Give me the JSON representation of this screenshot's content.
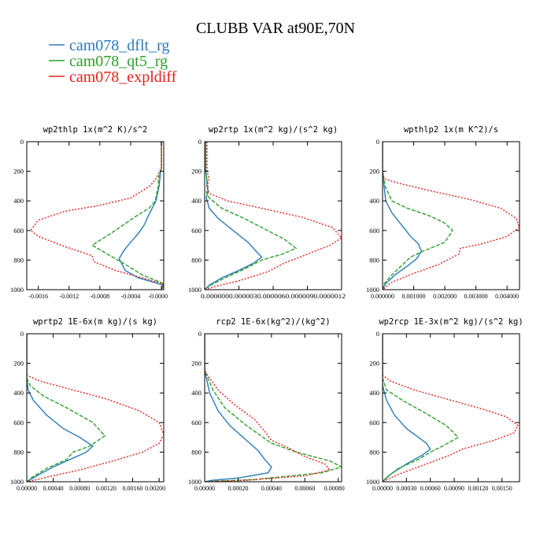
{
  "title": "CLUBB VAR at90E,70N",
  "legend": [
    {
      "name": "cam078_dflt_rg",
      "color": "#2b7bb9"
    },
    {
      "name": "cam078_qt5_rg",
      "color": "#2ca02c"
    },
    {
      "name": "cam078_expldiff",
      "color": "#e3211c"
    }
  ],
  "chart_data": [
    {
      "type": "line",
      "title": "wp2thlp   1x(m^2 K)/s^2",
      "xlim": [
        -0.00175,
        3e-05
      ],
      "ylim": [
        1000,
        0
      ],
      "xticks": [
        -0.0016,
        -0.0012,
        -0.0008,
        -0.0004,
        0.0
      ],
      "xtick_labels": [
        "-0.0016",
        "-0.0012",
        "-0.0008",
        "-0.0004",
        "-0.0000"
      ],
      "yticks": [
        0,
        200,
        400,
        600,
        800,
        1000
      ],
      "series": [
        {
          "name": "cam078_dflt_rg",
          "x": [
            0,
            0,
            -1e-05,
            -2e-05,
            -3e-05,
            -7e-05,
            -0.00012,
            -0.00017,
            -0.00022,
            -0.0003,
            -0.0004,
            -0.00048,
            -0.00055,
            -0.00047,
            -0.0003,
            -0.0001,
            2e-05,
            0
          ],
          "y": [
            0,
            180,
            200,
            250,
            300,
            400,
            450,
            500,
            560,
            620,
            680,
            730,
            790,
            870,
            920,
            950,
            970,
            1000
          ]
        },
        {
          "name": "cam078_qt5_rg",
          "x": [
            0,
            0,
            -2e-05,
            -4e-05,
            -4e-05,
            -8e-05,
            -0.00016,
            -0.00032,
            -0.0006,
            -0.0009,
            -0.0007,
            -0.0005,
            -0.00025,
            1e-05,
            2e-05,
            0
          ],
          "y": [
            0,
            180,
            210,
            250,
            300,
            400,
            450,
            500,
            600,
            700,
            760,
            820,
            900,
            955,
            980,
            1000
          ]
        },
        {
          "name": "cam078_expldiff",
          "x": [
            0,
            0,
            -2e-05,
            -7e-05,
            -0.00015,
            -0.0004,
            -0.0008,
            -0.00125,
            -0.0016,
            -0.0017,
            -0.0016,
            -0.00125,
            -0.0009,
            -0.00088,
            -0.0006,
            -0.00025,
            2e-05,
            0
          ],
          "y": [
            0,
            180,
            200,
            250,
            300,
            380,
            430,
            470,
            530,
            600,
            640,
            710,
            770,
            810,
            870,
            920,
            960,
            1000
          ]
        }
      ]
    },
    {
      "type": "line",
      "title": "wp2rtp   1x(m^2 kg)/(s^2 kg)",
      "xlim": [
        0.0,
        1.2e-06
      ],
      "ylim": [
        1000,
        0
      ],
      "xticks": [
        0.0,
        3e-07,
        6e-07,
        9e-07,
        1.2e-06
      ],
      "xtick_labels": [
        "0.000000",
        "0.000000",
        "0.000000",
        "0.000000",
        "0.000001"
      ],
      "tick_text": "0.0000000.0000030.0000060.0000090.0000012",
      "yticks": [
        0,
        200,
        400,
        600,
        800,
        1000
      ],
      "series": [
        {
          "name": "cam078_dflt_rg",
          "x": [
            1e-08,
            1e-08,
            2e-08,
            2e-08,
            3e-08,
            1.5e-08,
            4e-08,
            1.2e-07,
            2.5e-07,
            3.8e-07,
            4.5e-07,
            5e-07,
            4.3e-07,
            3e-07,
            1.5e-07,
            4e-08,
            0
          ],
          "y": [
            0,
            200,
            260,
            300,
            330,
            380,
            450,
            520,
            600,
            680,
            740,
            780,
            820,
            870,
            920,
            970,
            1000
          ]
        },
        {
          "name": "cam078_qt5_rg",
          "x": [
            1e-08,
            1e-08,
            2e-08,
            3e-08,
            1.5e-08,
            4e-08,
            1.5e-07,
            3.5e-07,
            5.5e-07,
            7e-07,
            8e-07,
            6.8e-07,
            5e-07,
            3.5e-07,
            1.8e-07,
            5e-08,
            0
          ],
          "y": [
            0,
            200,
            260,
            300,
            340,
            380,
            450,
            520,
            600,
            660,
            720,
            760,
            800,
            860,
            920,
            970,
            1000
          ]
        },
        {
          "name": "cam078_expldiff",
          "x": [
            2e-08,
            2e-08,
            4e-08,
            2e-08,
            4e-08,
            2e-07,
            5e-07,
            8.5e-07,
            1.12e-06,
            1.2e-06,
            1.1e-06,
            9e-07,
            7e-07,
            5.5e-07,
            3e-07,
            8e-08,
            0
          ],
          "y": [
            0,
            200,
            250,
            300,
            350,
            400,
            450,
            510,
            580,
            650,
            700,
            760,
            820,
            880,
            940,
            980,
            1000
          ]
        }
      ]
    },
    {
      "type": "line",
      "title": "wpthlp2   1x(m K^2)/s",
      "xlim": [
        0.0,
        0.0044
      ],
      "ylim": [
        1000,
        0
      ],
      "xticks": [
        0.0,
        0.001,
        0.002,
        0.003,
        0.004
      ],
      "xtick_labels": [
        "0.000000",
        "0.001000",
        "0.002000",
        "0.003000",
        "0.004000"
      ],
      "yticks": [
        0,
        200,
        400,
        600,
        800,
        1000
      ],
      "series": [
        {
          "name": "cam078_dflt_rg",
          "x": [
            0,
            0,
            5e-05,
            0.0001,
            0.0003,
            0.0006,
            0.0009,
            0.00115,
            0.00125,
            0.0011,
            0.0008,
            0.0004,
            0.0001,
            0
          ],
          "y": [
            0,
            200,
            300,
            400,
            480,
            560,
            640,
            690,
            740,
            790,
            840,
            900,
            960,
            1000
          ]
        },
        {
          "name": "cam078_qt5_rg",
          "x": [
            0,
            0,
            8e-05,
            0.0003,
            0.0008,
            0.0015,
            0.002,
            0.00225,
            0.002,
            0.0013,
            0.0009,
            0.0007,
            0.0003,
            5e-05,
            0
          ],
          "y": [
            0,
            200,
            300,
            400,
            450,
            500,
            550,
            600,
            680,
            740,
            780,
            820,
            900,
            960,
            1000
          ]
        },
        {
          "name": "cam078_expldiff",
          "x": [
            0,
            0,
            5e-05,
            0.0005,
            0.0015,
            0.0028,
            0.0038,
            0.0043,
            0.0044,
            0.004,
            0.0032,
            0.0025,
            0.00245,
            0.0018,
            0.001,
            0.0003,
            0
          ],
          "y": [
            0,
            200,
            250,
            280,
            330,
            390,
            450,
            520,
            580,
            640,
            690,
            720,
            760,
            830,
            890,
            950,
            1000
          ]
        }
      ]
    },
    {
      "type": "line",
      "title": "wprtp2   1E-6x(m kg)/(s kg)",
      "xlim": [
        0.0,
        0.00207
      ],
      "ylim": [
        1000,
        0
      ],
      "xticks": [
        0.0,
        0.0004,
        0.0008,
        0.0012,
        0.0016,
        0.002
      ],
      "xtick_labels": [
        "0.00000",
        "0.00040",
        "0.00080",
        "0.00120",
        "0.00160",
        "0.00200"
      ],
      "yticks": [
        0,
        200,
        400,
        600,
        800,
        1000
      ],
      "series": [
        {
          "name": "cam078_dflt_rg",
          "x": [
            0,
            0,
            2e-05,
            0.0001,
            0.0003,
            0.00055,
            0.0008,
            0.001,
            0.0009,
            0.00065,
            0.0004,
            0.00015,
            0
          ],
          "y": [
            0,
            300,
            380,
            450,
            550,
            640,
            700,
            760,
            800,
            850,
            900,
            960,
            1000
          ]
        },
        {
          "name": "cam078_qt5_rg",
          "x": [
            0,
            0,
            5e-05,
            0.00025,
            0.0006,
            0.001,
            0.00118,
            0.00095,
            0.0007,
            0.0006,
            0.0003,
            8e-05,
            0
          ],
          "y": [
            0,
            300,
            350,
            420,
            500,
            600,
            690,
            760,
            800,
            850,
            910,
            970,
            1000
          ]
        },
        {
          "name": "cam078_expldiff",
          "x": [
            0,
            0,
            0.0002,
            0.0007,
            0.0012,
            0.0017,
            0.002,
            0.00207,
            0.002,
            0.00175,
            0.0013,
            0.0008,
            0.0003,
            0
          ],
          "y": [
            0,
            280,
            320,
            380,
            440,
            520,
            600,
            680,
            740,
            800,
            860,
            920,
            970,
            1000
          ]
        }
      ]
    },
    {
      "type": "line",
      "title": "rcp2   1E-6x(kg^2)/(kg^2)",
      "xlim": [
        0.0,
        0.00082
      ],
      "ylim": [
        1000,
        0
      ],
      "xticks": [
        0.0,
        0.0002,
        0.0004,
        0.0006,
        0.0008
      ],
      "xtick_labels": [
        "0.00000",
        "0.00020",
        "0.00040",
        "0.00060",
        "0.00080"
      ],
      "yticks": [
        0,
        200,
        400,
        600,
        800,
        1000
      ],
      "series": [
        {
          "name": "cam078_dflt_rg",
          "x": [
            0,
            0,
            3e-05,
            8e-05,
            0.00015,
            0.00025,
            0.00032,
            0.00036,
            0.0004,
            0.00038,
            0.0002,
            5e-05,
            0
          ],
          "y": [
            0,
            250,
            400,
            520,
            620,
            720,
            790,
            850,
            900,
            940,
            975,
            990,
            1000
          ]
        },
        {
          "name": "cam078_qt5_rg",
          "x": [
            0,
            0,
            5e-05,
            0.00012,
            0.00025,
            0.00035,
            0.0004,
            0.00055,
            0.00075,
            0.00082,
            0.0007,
            0.0003,
            0
          ],
          "y": [
            0,
            250,
            380,
            500,
            620,
            700,
            740,
            800,
            860,
            900,
            940,
            985,
            1000
          ]
        },
        {
          "name": "cam078_expldiff",
          "x": [
            0,
            0,
            8e-05,
            0.00018,
            0.0003,
            0.00036,
            0.0004,
            0.0005,
            0.0006,
            0.00072,
            0.00075,
            0.0006,
            0.00025,
            0
          ],
          "y": [
            0,
            250,
            380,
            480,
            580,
            660,
            720,
            770,
            830,
            880,
            920,
            960,
            990,
            1000
          ]
        }
      ]
    },
    {
      "type": "line",
      "title": "wp2rcp   1E-3x(m^2 kg)/(s^2 kg)",
      "xlim": [
        0.0,
        0.00172
      ],
      "ylim": [
        1000,
        0
      ],
      "xticks": [
        0.0,
        0.0003,
        0.0006,
        0.0009,
        0.0012,
        0.0015
      ],
      "xtick_labels": [
        "0.00000",
        "0.00030",
        "0.00060",
        "0.00090",
        "0.00120",
        "0.00150"
      ],
      "yticks": [
        0,
        200,
        400,
        600,
        800,
        1000
      ],
      "series": [
        {
          "name": "cam078_dflt_rg",
          "x": [
            0,
            0,
            5e-05,
            0.00015,
            0.0003,
            0.00045,
            0.00055,
            0.0006,
            0.0005,
            0.0003,
            0.0001,
            0
          ],
          "y": [
            0,
            350,
            450,
            550,
            640,
            700,
            740,
            780,
            820,
            880,
            950,
            1000
          ]
        },
        {
          "name": "cam078_qt5_rg",
          "x": [
            0,
            0,
            5e-05,
            0.00025,
            0.00055,
            0.0008,
            0.00095,
            0.00075,
            0.0006,
            0.00045,
            0.0002,
            5e-05,
            0
          ],
          "y": [
            0,
            300,
            380,
            450,
            540,
            620,
            700,
            760,
            800,
            850,
            910,
            970,
            1000
          ]
        },
        {
          "name": "cam078_expldiff",
          "x": [
            0,
            0,
            0.0001,
            0.0004,
            0.0008,
            0.0012,
            0.00155,
            0.0017,
            0.00165,
            0.0014,
            0.001,
            0.00085,
            0.0006,
            0.0002,
            0
          ],
          "y": [
            0,
            280,
            320,
            380,
            440,
            500,
            560,
            620,
            670,
            720,
            780,
            820,
            870,
            950,
            1000
          ]
        }
      ]
    }
  ]
}
